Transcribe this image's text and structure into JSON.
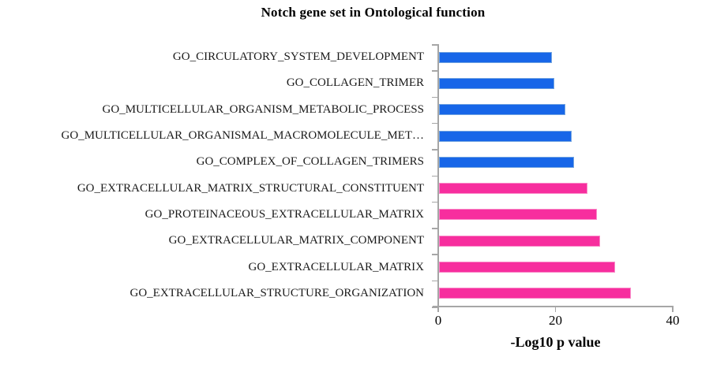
{
  "title": "Notch gene set in Ontological function",
  "chart_data": {
    "type": "bar",
    "orientation": "horizontal",
    "title": "Notch gene set in Ontological function",
    "xlabel": "-Log10 p value",
    "ylabel": "",
    "xlim": [
      0,
      40
    ],
    "xticks": [
      0,
      20,
      40
    ],
    "xtick_labels": [
      "0",
      "20",
      "40"
    ],
    "grid": false,
    "legend": "none",
    "categories": [
      "GO_CIRCULATORY_SYSTEM_DEVELOPMENT",
      "GO_COLLAGEN_TRIMER",
      "GO_MULTICELLULAR_ORGANISM_METABOLIC_PROCESS",
      "GO_MULTICELLULAR_ORGANISMAL_MACROMOLECULE_MET…",
      "GO_COMPLEX_OF_COLLAGEN_TRIMERS",
      "GO_EXTRACELLULAR_MATRIX_STRUCTURAL_CONSTITUENT",
      "GO_PROTEINACEOUS_EXTRACELLULAR_MATRIX",
      "GO_EXTRACELLULAR_MATRIX_COMPONENT",
      "GO_EXTRACELLULAR_MATRIX",
      "GO_EXTRACELLULAR_STRUCTURE_ORGANIZATION"
    ],
    "values": [
      19.1,
      19.5,
      21.4,
      22.4,
      22.8,
      25.2,
      26.8,
      27.3,
      29.8,
      32.5
    ],
    "bar_groups": [
      "blue",
      "blue",
      "blue",
      "blue",
      "blue",
      "pink",
      "pink",
      "pink",
      "pink",
      "pink"
    ],
    "palette": {
      "blue": {
        "fill": "#1766E8",
        "border": "#70A2E0"
      },
      "pink": {
        "fill": "#F72E9E",
        "border": "#F987C6"
      }
    },
    "axis_color": "#A6A6A6"
  }
}
